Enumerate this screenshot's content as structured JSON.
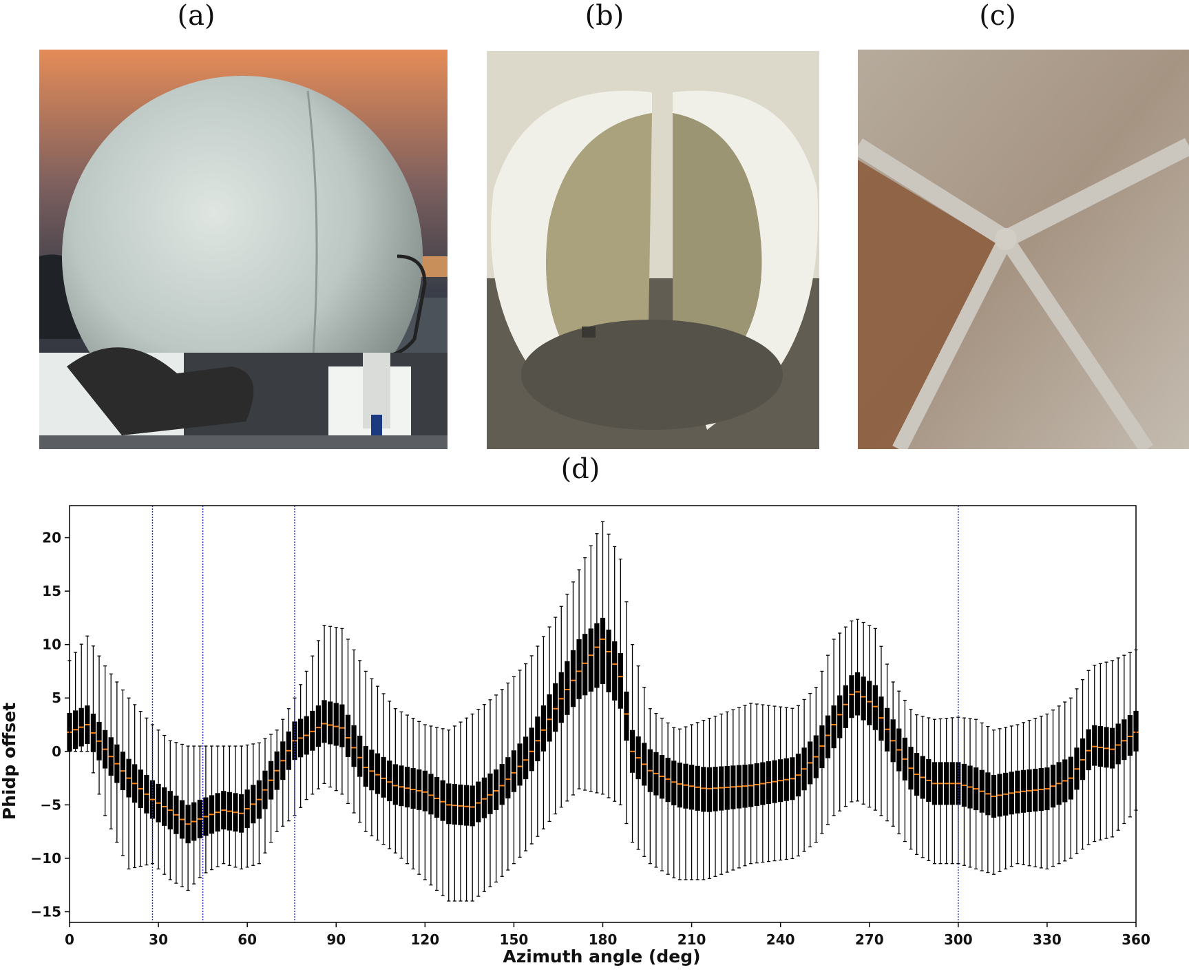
{
  "panels": {
    "a": "(a)",
    "b": "(b)",
    "c": "(c)",
    "d": "(d)"
  },
  "photos": {
    "a": {
      "subject": "white spherical radome on ship deck at sunset",
      "colors": [
        "#2e3038",
        "#e8915a",
        "#c9d3cf",
        "#4a4e57"
      ]
    },
    "b": {
      "subject": "two halves of an opened radome shell",
      "colors": [
        "#efeee6",
        "#9a9470",
        "#5e5a4c",
        "#dcd8ca"
      ]
    },
    "c": {
      "subject": "radome interior panel seams",
      "colors": [
        "#a08f7e",
        "#8a5a3b",
        "#c7c1b5",
        "#7a7268"
      ]
    }
  },
  "chart_data": {
    "type": "box",
    "xlabel": "Azimuth angle (deg)",
    "ylabel": "Phidp offset",
    "xlim": [
      0,
      360
    ],
    "ylim": [
      -16,
      23
    ],
    "xticks": [
      0,
      30,
      60,
      90,
      120,
      150,
      180,
      210,
      240,
      270,
      300,
      330,
      360
    ],
    "yticks": [
      -15,
      -10,
      -5,
      0,
      5,
      10,
      15,
      20
    ],
    "reference_lines_x": [
      28,
      45,
      76,
      300
    ],
    "reference_line_color": "#1f2fd6",
    "box_color": "#000000",
    "median_color": "#ff7f0e",
    "grid": false,
    "box_spacing_deg": 2,
    "profile_keys": {
      "azimuth": [
        0,
        6,
        12,
        20,
        28,
        34,
        40,
        45,
        52,
        58,
        64,
        70,
        76,
        80,
        86,
        92,
        100,
        110,
        120,
        128,
        136,
        145,
        155,
        165,
        172,
        180,
        186,
        190,
        196,
        205,
        215,
        230,
        245,
        252,
        258,
        265,
        272,
        278,
        285,
        292,
        300,
        306,
        312,
        320,
        330,
        338,
        345,
        352,
        360
      ],
      "median": [
        1.8,
        2.5,
        0.2,
        -2.5,
        -4.5,
        -5.5,
        -6.8,
        -6.2,
        -5.5,
        -5.8,
        -4.5,
        -1.8,
        1.0,
        1.5,
        2.6,
        2.2,
        -1.5,
        -3.2,
        -3.8,
        -5.0,
        -5.2,
        -3.5,
        -0.5,
        4.5,
        7.5,
        10.5,
        7.0,
        0.0,
        -1.8,
        -3.0,
        -3.5,
        -3.2,
        -2.5,
        -0.5,
        2.5,
        5.8,
        4.2,
        1.0,
        -2.0,
        -3.0,
        -3.0,
        -3.5,
        -4.2,
        -3.8,
        -3.5,
        -2.5,
        0.5,
        0.2,
        1.8
      ],
      "whisker_low": [
        0.0,
        0.0,
        -6.0,
        -11.0,
        -10.5,
        -12.0,
        -13.0,
        -11.5,
        -10.5,
        -11.0,
        -10.5,
        -7.5,
        -6.0,
        -4.5,
        -3.0,
        -4.0,
        -7.5,
        -9.5,
        -12.0,
        -14.0,
        -14.0,
        -12.0,
        -9.0,
        -5.5,
        -3.5,
        -4.0,
        -5.0,
        -8.5,
        -10.5,
        -12.0,
        -12.0,
        -10.5,
        -10.0,
        -8.5,
        -6.0,
        -4.5,
        -5.5,
        -7.0,
        -9.5,
        -10.5,
        -10.5,
        -11.0,
        -11.5,
        -10.5,
        -11.0,
        -10.0,
        -8.5,
        -8.0,
        -5.5
      ],
      "whisker_high": [
        8.5,
        10.8,
        8.0,
        5.0,
        2.5,
        1.0,
        0.5,
        0.5,
        0.5,
        0.5,
        0.8,
        2.0,
        5.0,
        7.5,
        11.8,
        11.5,
        7.5,
        4.0,
        2.5,
        2.0,
        3.5,
        5.5,
        8.5,
        13.0,
        17.0,
        21.5,
        18.0,
        10.0,
        4.0,
        2.0,
        3.0,
        4.5,
        4.0,
        6.0,
        10.5,
        12.5,
        11.5,
        6.5,
        3.5,
        3.0,
        3.2,
        3.0,
        2.0,
        2.5,
        3.5,
        5.0,
        8.0,
        8.5,
        9.5
      ],
      "q1_offset": [
        -1.8,
        -1.8,
        -1.8,
        -1.8,
        -1.8,
        -1.8,
        -1.8,
        -1.8,
        -1.8,
        -1.8,
        -1.8,
        -1.8,
        -1.8,
        -1.8,
        -1.8,
        -1.8,
        -1.8,
        -1.8,
        -1.8,
        -1.8,
        -1.8,
        -1.8,
        -1.8,
        -2.2,
        -2.6,
        -4.2,
        -3.0,
        -2.0,
        -2.0,
        -2.2,
        -2.2,
        -2.0,
        -2.0,
        -2.0,
        -2.2,
        -2.2,
        -2.2,
        -2.0,
        -2.0,
        -2.0,
        -2.0,
        -2.0,
        -2.0,
        -2.0,
        -2.0,
        -2.0,
        -1.8,
        -1.8,
        -1.8
      ],
      "q3_offset": [
        1.8,
        1.8,
        1.8,
        1.8,
        1.8,
        1.8,
        1.8,
        1.8,
        1.8,
        1.8,
        1.8,
        1.8,
        1.8,
        1.8,
        2.2,
        2.2,
        2.0,
        2.0,
        2.0,
        2.0,
        2.0,
        2.0,
        2.2,
        2.4,
        3.0,
        2.0,
        2.2,
        2.0,
        2.0,
        2.0,
        2.0,
        2.0,
        2.0,
        2.0,
        1.8,
        1.8,
        2.0,
        2.0,
        2.0,
        2.0,
        2.0,
        2.0,
        2.0,
        2.0,
        2.0,
        2.0,
        2.0,
        2.0,
        2.0
      ]
    }
  }
}
